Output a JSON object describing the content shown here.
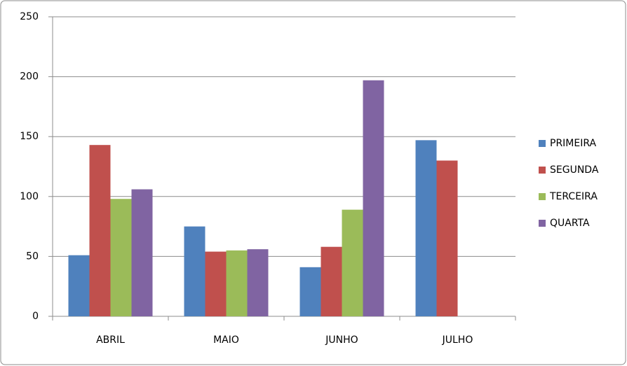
{
  "chart_data": {
    "type": "bar",
    "categories": [
      "ABRIL",
      "MAIO",
      "JUNHO",
      "JULHO"
    ],
    "series": [
      {
        "name": "PRIMEIRA",
        "color": "#4f81bd",
        "values": [
          51,
          75,
          41,
          147
        ]
      },
      {
        "name": "SEGUNDA",
        "color": "#c0504d",
        "values": [
          143,
          54,
          58,
          130
        ]
      },
      {
        "name": "TERCEIRA",
        "color": "#9bbb59",
        "values": [
          98,
          55,
          89,
          null
        ]
      },
      {
        "name": "QUARTA",
        "color": "#8064a2",
        "values": [
          106,
          56,
          197,
          null
        ]
      }
    ],
    "ylim": [
      0,
      250
    ],
    "yticks": [
      0,
      50,
      100,
      150,
      200,
      250
    ],
    "grid": true,
    "legend": "right"
  }
}
